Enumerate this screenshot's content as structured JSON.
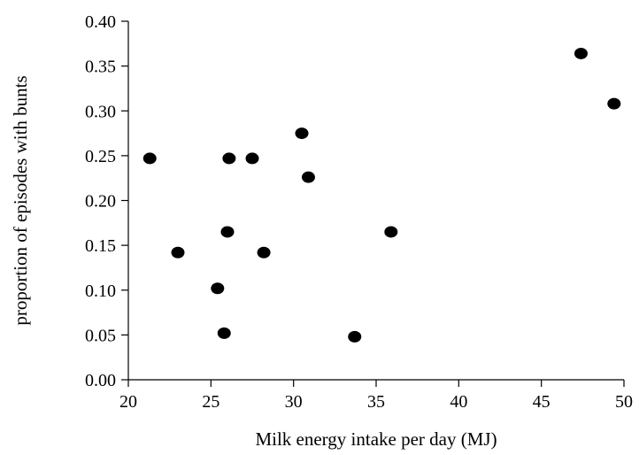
{
  "chart_data": {
    "type": "scatter",
    "title": "",
    "xlabel": "Milk energy intake per day (MJ)",
    "ylabel": "proportion of episodes with bunts",
    "xlim": [
      20,
      50
    ],
    "ylim": [
      0.0,
      0.4
    ],
    "x_ticks": [
      "20",
      "25",
      "30",
      "35",
      "40",
      "45",
      "50"
    ],
    "y_ticks": [
      "0.00",
      "0.05",
      "0.10",
      "0.15",
      "0.20",
      "0.25",
      "0.30",
      "0.35",
      "0.40"
    ],
    "grid": false,
    "legend": "none",
    "marker_color": "#000000",
    "points": [
      {
        "x": 21.3,
        "y": 0.247
      },
      {
        "x": 23.0,
        "y": 0.142
      },
      {
        "x": 25.4,
        "y": 0.102
      },
      {
        "x": 25.8,
        "y": 0.052
      },
      {
        "x": 26.0,
        "y": 0.165
      },
      {
        "x": 26.1,
        "y": 0.247
      },
      {
        "x": 27.5,
        "y": 0.247
      },
      {
        "x": 28.2,
        "y": 0.142
      },
      {
        "x": 30.5,
        "y": 0.275
      },
      {
        "x": 30.9,
        "y": 0.226
      },
      {
        "x": 33.7,
        "y": 0.048
      },
      {
        "x": 35.9,
        "y": 0.165
      },
      {
        "x": 47.4,
        "y": 0.364
      },
      {
        "x": 49.4,
        "y": 0.308
      }
    ]
  }
}
